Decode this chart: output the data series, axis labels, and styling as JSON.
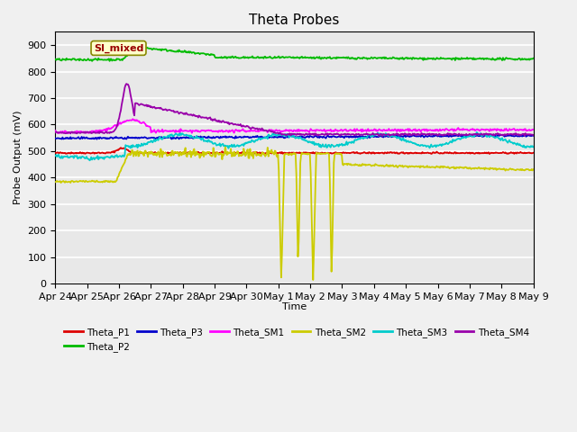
{
  "title": "Theta Probes",
  "xlabel": "Time",
  "ylabel": "Probe Output (mV)",
  "ylim": [
    0,
    950
  ],
  "yticks": [
    0,
    100,
    200,
    300,
    400,
    500,
    600,
    700,
    800,
    900
  ],
  "x_tick_labels": [
    "Apr 24",
    "Apr 25",
    "Apr 26",
    "Apr 27",
    "Apr 28",
    "Apr 29",
    "Apr 30",
    "May 1",
    "May 2",
    "May 3",
    "May 4",
    "May 5",
    "May 6",
    "May 7",
    "May 8",
    "May 9"
  ],
  "figure_bg": "#f0f0f0",
  "plot_bg": "#e8e8e8",
  "grid_color": "#ffffff",
  "annotation_text": "SI_mixed",
  "annotation_color": "#990000",
  "annotation_bg": "#ffffcc",
  "annotation_edge": "#888800",
  "colors": {
    "Theta_P1": "#dd0000",
    "Theta_P2": "#00bb00",
    "Theta_P3": "#0000cc",
    "Theta_SM1": "#ff00ff",
    "Theta_SM2": "#cccc00",
    "Theta_SM3": "#00cccc",
    "Theta_SM4": "#9900aa"
  },
  "legend_labels": [
    "Theta_P1",
    "Theta_P2",
    "Theta_P3",
    "Theta_SM1",
    "Theta_SM2",
    "Theta_SM3",
    "Theta_SM4"
  ],
  "legend_styles": [
    "solid",
    "solid",
    "solid",
    "solid",
    "solid",
    "solid",
    "solid"
  ]
}
